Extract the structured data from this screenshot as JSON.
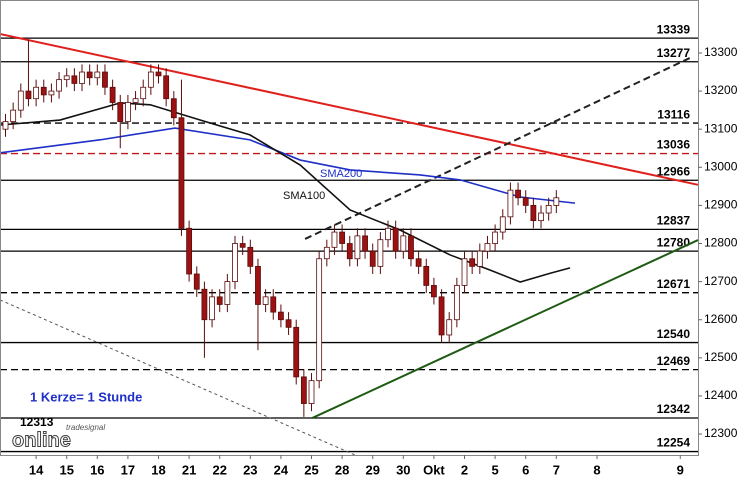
{
  "chart_data": {
    "type": "candlestick",
    "x": [
      -1,
      -0.75,
      -0.5,
      -0.25,
      0,
      0.25,
      0.5,
      0.75,
      1,
      1.25,
      1.5,
      1.75,
      2,
      2.25,
      2.5,
      2.75,
      3,
      3.25,
      3.5,
      3.75,
      4,
      4.25,
      4.5,
      4.75,
      5,
      5.25,
      5.5,
      5.75,
      6,
      6.25,
      6.5,
      6.75,
      7,
      7.25,
      7.5,
      7.75,
      8,
      8.25,
      8.5,
      8.75,
      9,
      9.25,
      9.5,
      9.75,
      10,
      10.25,
      10.5,
      10.75,
      11,
      11.25,
      11.5,
      11.75,
      12,
      12.25,
      12.5,
      12.75,
      13,
      13.25,
      13.5,
      13.75,
      14,
      14.25,
      14.5,
      14.75,
      15,
      15.25,
      15.5,
      15.75,
      16,
      16.25,
      16.5,
      16.75,
      17
    ],
    "open": [
      13100,
      13120,
      13150,
      13200,
      13180,
      13210,
      13190,
      13200,
      13230,
      13240,
      13220,
      13250,
      13235,
      13250,
      13210,
      13170,
      13120,
      13170,
      13180,
      13210,
      13250,
      13240,
      13180,
      13130,
      12840,
      12720,
      12680,
      12600,
      12660,
      12640,
      12700,
      12800,
      12790,
      12740,
      12640,
      12660,
      12620,
      12600,
      12580,
      12450,
      12380,
      12440,
      12760,
      12790,
      12830,
      12800,
      12760,
      12820,
      12780,
      12740,
      12810,
      12840,
      12780,
      12820,
      12760,
      12740,
      12690,
      12660,
      12560,
      12600,
      12690,
      12760,
      12740,
      12780,
      12800,
      12830,
      12870,
      12940,
      12920,
      12900,
      12860,
      12880,
      12900
    ],
    "high": [
      13140,
      13170,
      13220,
      13335,
      13230,
      13230,
      13220,
      13250,
      13260,
      13260,
      13270,
      13270,
      13270,
      13270,
      13230,
      13190,
      13190,
      13200,
      13230,
      13270,
      13270,
      13260,
      13200,
      13230,
      12860,
      12740,
      12700,
      12680,
      12680,
      12720,
      12820,
      12820,
      12810,
      12760,
      12680,
      12680,
      12640,
      12620,
      12600,
      12470,
      12460,
      12780,
      12810,
      12850,
      12850,
      12820,
      12840,
      12840,
      12800,
      12830,
      12860,
      12860,
      12840,
      12840,
      12780,
      12760,
      12710,
      12680,
      12620,
      12710,
      12780,
      12780,
      12800,
      12820,
      12850,
      12890,
      12960,
      12960,
      12940,
      12920,
      12900,
      12920,
      12940
    ],
    "low": [
      13080,
      13100,
      13130,
      13160,
      13160,
      13170,
      13170,
      13180,
      13210,
      13200,
      13200,
      13215,
      13215,
      13190,
      13150,
      13050,
      13100,
      13150,
      13160,
      13190,
      13220,
      13160,
      13110,
      12820,
      12700,
      12660,
      12500,
      12580,
      12620,
      12620,
      12680,
      12770,
      12720,
      12520,
      12620,
      12600,
      12580,
      12560,
      12430,
      12345,
      12360,
      12420,
      12740,
      12770,
      12780,
      12740,
      12740,
      12760,
      12720,
      12720,
      12790,
      12760,
      12760,
      12740,
      12720,
      12670,
      12640,
      12540,
      12540,
      12580,
      12670,
      12720,
      12720,
      12760,
      12780,
      12810,
      12850,
      12900,
      12880,
      12840,
      12840,
      12860,
      12880
    ],
    "close": [
      13120,
      13150,
      13200,
      13180,
      13210,
      13190,
      13200,
      13230,
      13240,
      13220,
      13250,
      13235,
      13250,
      13210,
      13170,
      13120,
      13170,
      13180,
      13210,
      13250,
      13240,
      13180,
      13130,
      12840,
      12720,
      12680,
      12600,
      12660,
      12640,
      12700,
      12800,
      12790,
      12740,
      12640,
      12660,
      12620,
      12600,
      12580,
      12450,
      12380,
      12440,
      12760,
      12790,
      12830,
      12800,
      12760,
      12820,
      12780,
      12740,
      12810,
      12840,
      12780,
      12820,
      12760,
      12740,
      12690,
      12660,
      12560,
      12600,
      12690,
      12760,
      12740,
      12780,
      12800,
      12830,
      12870,
      12940,
      12920,
      12900,
      12860,
      12880,
      12900,
      12920
    ],
    "up_color": "#ffffff",
    "down_color": "#9c1212",
    "xlim": [
      -1.18,
      21.63
    ],
    "ylim": [
      12245,
      13439
    ],
    "yticks": [
      12300,
      12400,
      12500,
      12600,
      12700,
      12800,
      12900,
      13000,
      13100,
      13200,
      13300
    ],
    "xticks": [
      {
        "value": 0,
        "label": "14"
      },
      {
        "value": 1,
        "label": "15"
      },
      {
        "value": 2,
        "label": "16"
      },
      {
        "value": 3,
        "label": "17"
      },
      {
        "value": 4,
        "label": "18"
      },
      {
        "value": 5,
        "label": "21"
      },
      {
        "value": 6,
        "label": "22"
      },
      {
        "value": 7,
        "label": "23"
      },
      {
        "value": 8,
        "label": "24"
      },
      {
        "value": 9,
        "label": "25"
      },
      {
        "value": 10,
        "label": "28"
      },
      {
        "value": 11,
        "label": "29"
      },
      {
        "value": 12,
        "label": "30"
      },
      {
        "value": 13,
        "label": "Okt"
      },
      {
        "value": 14,
        "label": "2"
      },
      {
        "value": 15,
        "label": "5"
      },
      {
        "value": 16,
        "label": "6"
      },
      {
        "value": 17,
        "label": "7"
      },
      {
        "value": 18.33,
        "label": "8"
      },
      {
        "value": 21.05,
        "label": "9"
      }
    ],
    "series": [
      {
        "name": "SMA200",
        "color": "#1f2fc8",
        "x": [
          -1.18,
          2.09,
          4.54,
          6.99,
          8.63,
          10.26,
          12.55,
          13.86,
          15.82,
          17.61
        ],
        "values": [
          13038,
          13072,
          13103,
          13072,
          13019,
          12993,
          12980,
          12967,
          12922,
          12906
        ]
      },
      {
        "name": "SMA100",
        "color": "#111111",
        "x": [
          -1.18,
          0.78,
          2.75,
          3.73,
          5.36,
          6.99,
          8.63,
          10.26,
          11.9,
          13.53,
          14.84,
          15.82,
          16.8,
          17.45
        ],
        "values": [
          13111,
          13124,
          13169,
          13164,
          13124,
          13085,
          13006,
          12888,
          12835,
          12770,
          12730,
          12699,
          12722,
          12736
        ]
      }
    ],
    "trendlines": [
      {
        "color": "#e0201c",
        "style": "solid",
        "x": [
          -1.18,
          21.63
        ],
        "values": [
          13350,
          12954
        ]
      },
      {
        "color": "#1e5a12",
        "style": "solid",
        "x": [
          9.02,
          21.63
        ],
        "values": [
          12342,
          12809
        ]
      },
      {
        "color": "#222222",
        "style": "dashed",
        "x": [
          8.79,
          21.37
        ],
        "values": [
          12812,
          13287
        ]
      },
      {
        "color": "#555555",
        "style": "dotted",
        "x": [
          -1.18,
          10.42
        ],
        "values": [
          12652,
          12245
        ]
      }
    ],
    "levels": [
      {
        "value": 13339,
        "style": "solid",
        "color": "#000000"
      },
      {
        "value": 13277,
        "style": "solid",
        "color": "#000000"
      },
      {
        "value": 13116,
        "style": "dashed",
        "color": "#000000"
      },
      {
        "value": 13036,
        "style": "dashed",
        "color": "#c0181c"
      },
      {
        "value": 12966,
        "style": "solid",
        "color": "#000000"
      },
      {
        "value": 12837,
        "style": "solid",
        "color": "#000000"
      },
      {
        "value": 12780,
        "style": "solid",
        "color": "#000000"
      },
      {
        "value": 12671,
        "style": "dashed",
        "color": "#000000"
      },
      {
        "value": 12540,
        "style": "solid",
        "color": "#000000"
      },
      {
        "value": 12469,
        "style": "dashed",
        "color": "#000000"
      },
      {
        "value": 12342,
        "style": "solid",
        "color": "#000000"
      },
      {
        "value": 12254,
        "style": "solid",
        "color": "#000000"
      }
    ],
    "annotations": [
      "1 Kerze= 1 Stunde",
      "12313"
    ],
    "logo": [
      "tradesignal",
      "online"
    ]
  }
}
